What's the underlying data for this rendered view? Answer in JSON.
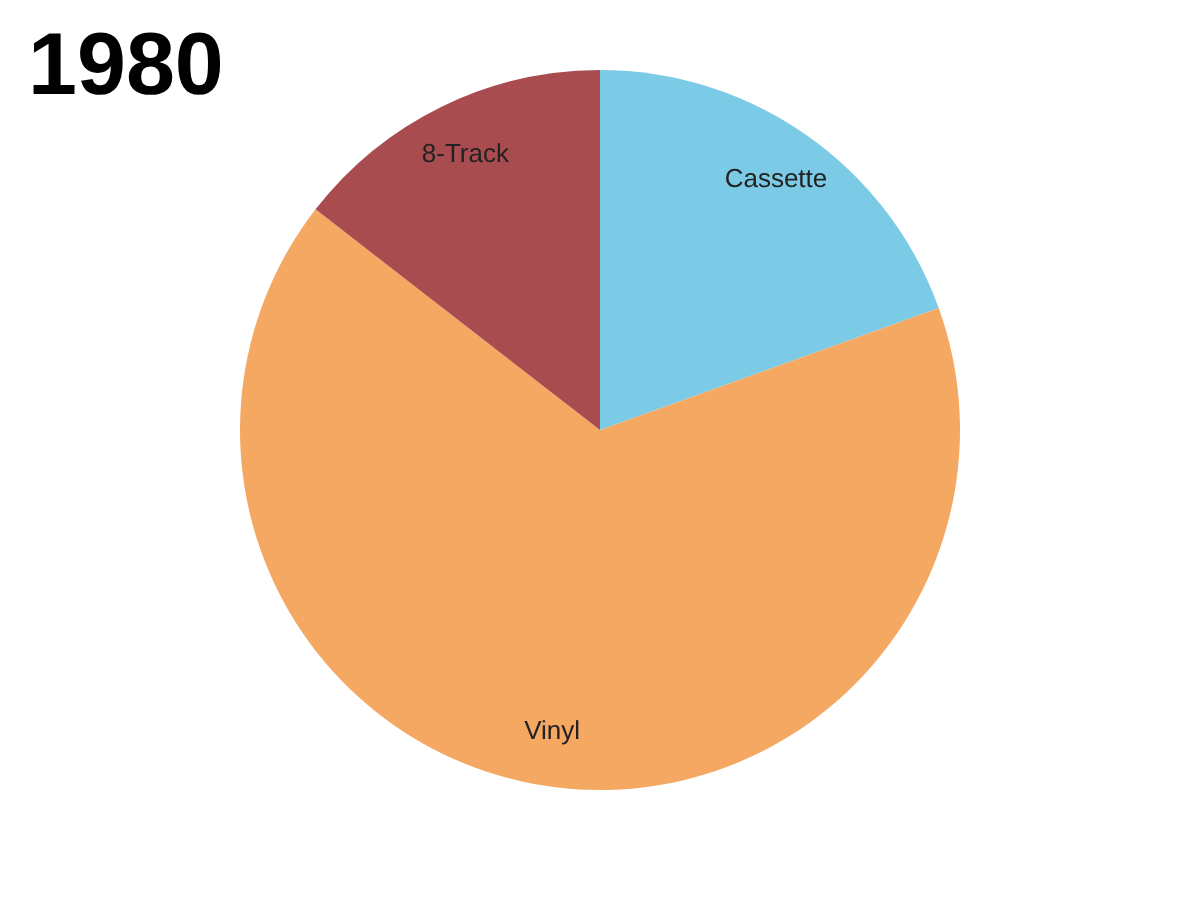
{
  "chart_data": {
    "type": "pie",
    "title": "1980",
    "categories": [
      "Cassette",
      "Vinyl",
      "8-Track"
    ],
    "values": [
      19.5,
      66,
      14.5
    ],
    "colors": [
      "#7ccbe6",
      "#f4a862",
      "#a84c50"
    ],
    "legend": false
  }
}
